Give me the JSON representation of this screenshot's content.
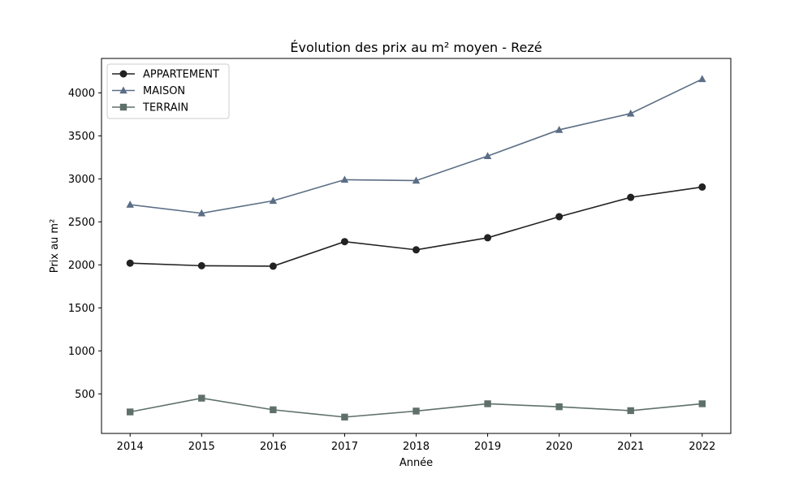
{
  "chart_data": {
    "type": "line",
    "title": "Évolution des prix au m² moyen - Rezé",
    "xlabel": "Année",
    "ylabel": "Prix au m²",
    "x": [
      2014,
      2015,
      2016,
      2017,
      2018,
      2019,
      2020,
      2021,
      2022
    ],
    "x_tick_labels": [
      "2014",
      "2015",
      "2016",
      "2017",
      "2018",
      "2019",
      "2020",
      "2021",
      "2022"
    ],
    "y_ticks": [
      500,
      1000,
      1500,
      2000,
      2500,
      3000,
      3500,
      4000
    ],
    "y_tick_labels": [
      "500",
      "1000",
      "1500",
      "2000",
      "2500",
      "3000",
      "3500",
      "4000"
    ],
    "xlim": [
      2013.6,
      2022.4
    ],
    "ylim": [
      40,
      4400
    ],
    "grid": false,
    "legend_position": "upper-left",
    "series": [
      {
        "name": "APPARTEMENT",
        "color": "#222222",
        "marker": "circle",
        "values": [
          2020,
          1990,
          1985,
          2270,
          2175,
          2315,
          2560,
          2785,
          2905
        ]
      },
      {
        "name": "MAISON",
        "color": "#5b6e85",
        "marker": "triangle",
        "values": [
          2700,
          2600,
          2745,
          2990,
          2980,
          3265,
          3570,
          3760,
          4160
        ]
      },
      {
        "name": "TERRAIN",
        "color": "#5f706b",
        "marker": "square",
        "values": [
          290,
          450,
          315,
          230,
          300,
          385,
          350,
          305,
          385
        ]
      }
    ]
  }
}
